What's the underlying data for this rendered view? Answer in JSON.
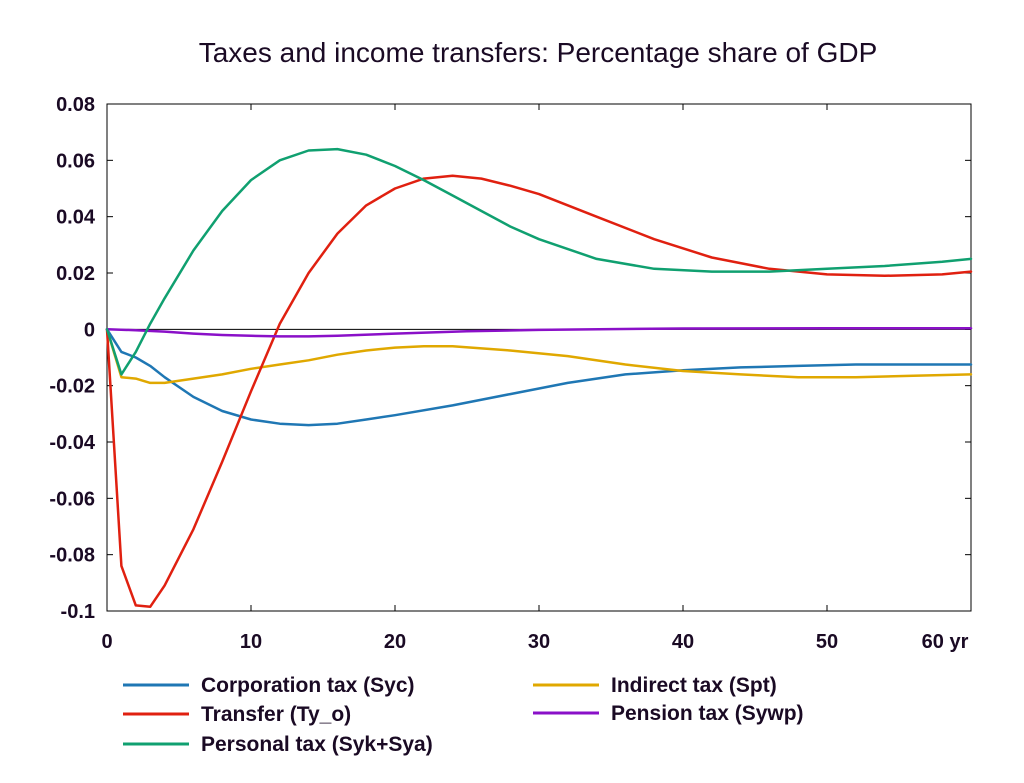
{
  "chart_data": {
    "type": "line",
    "title": "Taxes and income transfers: Percentage share of GDP",
    "xlabel": "",
    "ylabel": "",
    "xlim": [
      0,
      60
    ],
    "ylim": [
      -0.1,
      0.08
    ],
    "x_ticks": [
      "0",
      "10",
      "20",
      "30",
      "40",
      "50",
      "60 yr"
    ],
    "x_tick_values": [
      0,
      10,
      20,
      30,
      40,
      50,
      60
    ],
    "y_ticks": [
      "0.08",
      "0.06",
      "0.04",
      "0.02",
      "0",
      "-0.02",
      "-0.04",
      "-0.06",
      "-0.08",
      "-0.1"
    ],
    "y_tick_values": [
      0.08,
      0.06,
      0.04,
      0.02,
      0,
      -0.02,
      -0.04,
      -0.06,
      -0.08,
      -0.1
    ],
    "zero_line": true,
    "grid": false,
    "legend_position": "bottom",
    "series": [
      {
        "name": "Corporation tax (Syc)",
        "color": "#1f77b4",
        "x": [
          0,
          1,
          2,
          3,
          4,
          6,
          8,
          10,
          12,
          14,
          16,
          18,
          20,
          24,
          28,
          32,
          36,
          40,
          44,
          48,
          52,
          56,
          60
        ],
        "y": [
          0,
          -0.008,
          -0.01,
          -0.013,
          -0.017,
          -0.024,
          -0.029,
          -0.032,
          -0.0335,
          -0.034,
          -0.0335,
          -0.032,
          -0.0305,
          -0.027,
          -0.023,
          -0.019,
          -0.016,
          -0.0145,
          -0.0135,
          -0.013,
          -0.0125,
          -0.0125,
          -0.0125
        ]
      },
      {
        "name": "Indirect tax (Spt)",
        "color": "#e0a800",
        "x": [
          0,
          1,
          2,
          3,
          4,
          6,
          8,
          10,
          12,
          14,
          16,
          18,
          20,
          22,
          24,
          28,
          32,
          36,
          40,
          44,
          48,
          52,
          56,
          60
        ],
        "y": [
          0,
          -0.017,
          -0.0175,
          -0.019,
          -0.019,
          -0.0175,
          -0.016,
          -0.014,
          -0.0125,
          -0.011,
          -0.009,
          -0.0075,
          -0.0065,
          -0.006,
          -0.006,
          -0.0075,
          -0.0095,
          -0.0125,
          -0.0148,
          -0.016,
          -0.017,
          -0.017,
          -0.0165,
          -0.016
        ]
      },
      {
        "name": "Transfer (Ty_o)",
        "color": "#e02010",
        "x": [
          0,
          1,
          2,
          3,
          4,
          6,
          8,
          10,
          12,
          14,
          16,
          18,
          20,
          22,
          24,
          26,
          28,
          30,
          34,
          38,
          42,
          46,
          50,
          54,
          58,
          60
        ],
        "y": [
          0,
          -0.084,
          -0.098,
          -0.0985,
          -0.091,
          -0.071,
          -0.047,
          -0.022,
          0.002,
          0.02,
          0.034,
          0.044,
          0.05,
          0.0535,
          0.0545,
          0.0535,
          0.051,
          0.048,
          0.04,
          0.032,
          0.0255,
          0.0215,
          0.0195,
          0.019,
          0.0195,
          0.0205
        ]
      },
      {
        "name": "Pension tax (Sywp)",
        "color": "#8a10c8",
        "x": [
          0,
          2,
          4,
          6,
          8,
          10,
          12,
          14,
          16,
          20,
          25,
          30,
          35,
          40,
          50,
          60
        ],
        "y": [
          0,
          -0.0003,
          -0.0008,
          -0.0015,
          -0.002,
          -0.0023,
          -0.0025,
          -0.0025,
          -0.0023,
          -0.0015,
          -0.0007,
          -0.0002,
          0.0001,
          0.0003,
          0.0004,
          0.0004
        ]
      },
      {
        "name": "Personal tax (Syk+Sya)",
        "color": "#10a070",
        "x": [
          0,
          1,
          2,
          3,
          4,
          6,
          8,
          10,
          12,
          14,
          16,
          18,
          20,
          22,
          24,
          26,
          28,
          30,
          34,
          38,
          42,
          46,
          50,
          54,
          58,
          60
        ],
        "y": [
          0,
          -0.016,
          -0.008,
          0.002,
          0.011,
          0.028,
          0.042,
          0.053,
          0.06,
          0.0635,
          0.064,
          0.062,
          0.058,
          0.053,
          0.0475,
          0.042,
          0.0365,
          0.032,
          0.025,
          0.0215,
          0.0205,
          0.0205,
          0.0215,
          0.0225,
          0.024,
          0.025
        ]
      }
    ]
  }
}
